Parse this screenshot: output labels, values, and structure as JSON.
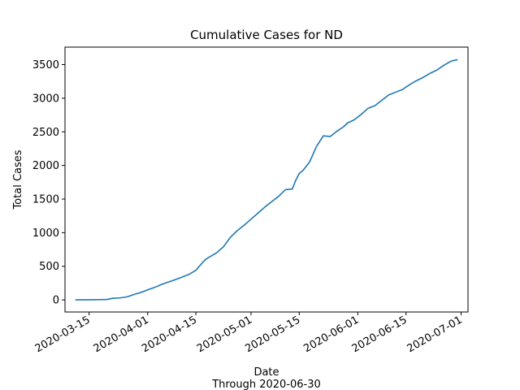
{
  "chart_data": {
    "type": "line",
    "title": "Cumulative Cases for ND",
    "xlabel": "Date",
    "xlabel_sub": "Through 2020-06-30",
    "ylabel": "Total Cases",
    "grid": false,
    "ylim": [
      -180,
      3760
    ],
    "xlim": [
      "2020-03-08",
      "2020-07-03"
    ],
    "y_ticks": [
      0,
      500,
      1000,
      1500,
      2000,
      2500,
      3000,
      3500
    ],
    "x_ticks": [
      "2020-03-15",
      "2020-04-01",
      "2020-04-15",
      "2020-05-01",
      "2020-05-15",
      "2020-06-01",
      "2020-06-15",
      "2020-07-01"
    ],
    "line_color": "#1f77b4",
    "series": [
      {
        "x": [
          "2020-03-11",
          "2020-03-15",
          "2020-03-20",
          "2020-03-22",
          "2020-03-24",
          "2020-03-26",
          "2020-03-28",
          "2020-03-30",
          "2020-04-01",
          "2020-04-03",
          "2020-04-05",
          "2020-04-07",
          "2020-04-09",
          "2020-04-11",
          "2020-04-13",
          "2020-04-15",
          "2020-04-17",
          "2020-04-18",
          "2020-04-19",
          "2020-04-21",
          "2020-04-23",
          "2020-04-25",
          "2020-04-27",
          "2020-04-29",
          "2020-05-01",
          "2020-05-03",
          "2020-05-05",
          "2020-05-07",
          "2020-05-09",
          "2020-05-11",
          "2020-05-13",
          "2020-05-14",
          "2020-05-15",
          "2020-05-16",
          "2020-05-18",
          "2020-05-20",
          "2020-05-21",
          "2020-05-22",
          "2020-05-24",
          "2020-05-26",
          "2020-05-28",
          "2020-05-29",
          "2020-05-31",
          "2020-06-02",
          "2020-06-04",
          "2020-06-06",
          "2020-06-08",
          "2020-06-10",
          "2020-06-12",
          "2020-06-14",
          "2020-06-16",
          "2020-06-18",
          "2020-06-20",
          "2020-06-22",
          "2020-06-24",
          "2020-06-26",
          "2020-06-28",
          "2020-06-30"
        ],
        "values": [
          1,
          2,
          5,
          25,
          30,
          45,
          80,
          110,
          150,
          185,
          230,
          265,
          300,
          340,
          380,
          440,
          560,
          610,
          640,
          700,
          790,
          930,
          1030,
          1110,
          1200,
          1290,
          1380,
          1460,
          1540,
          1640,
          1650,
          1780,
          1880,
          1920,
          2050,
          2280,
          2360,
          2440,
          2430,
          2510,
          2580,
          2630,
          2680,
          2760,
          2850,
          2890,
          2970,
          3050,
          3090,
          3130,
          3200,
          3260,
          3310,
          3370,
          3420,
          3490,
          3550,
          3575
        ]
      }
    ]
  }
}
